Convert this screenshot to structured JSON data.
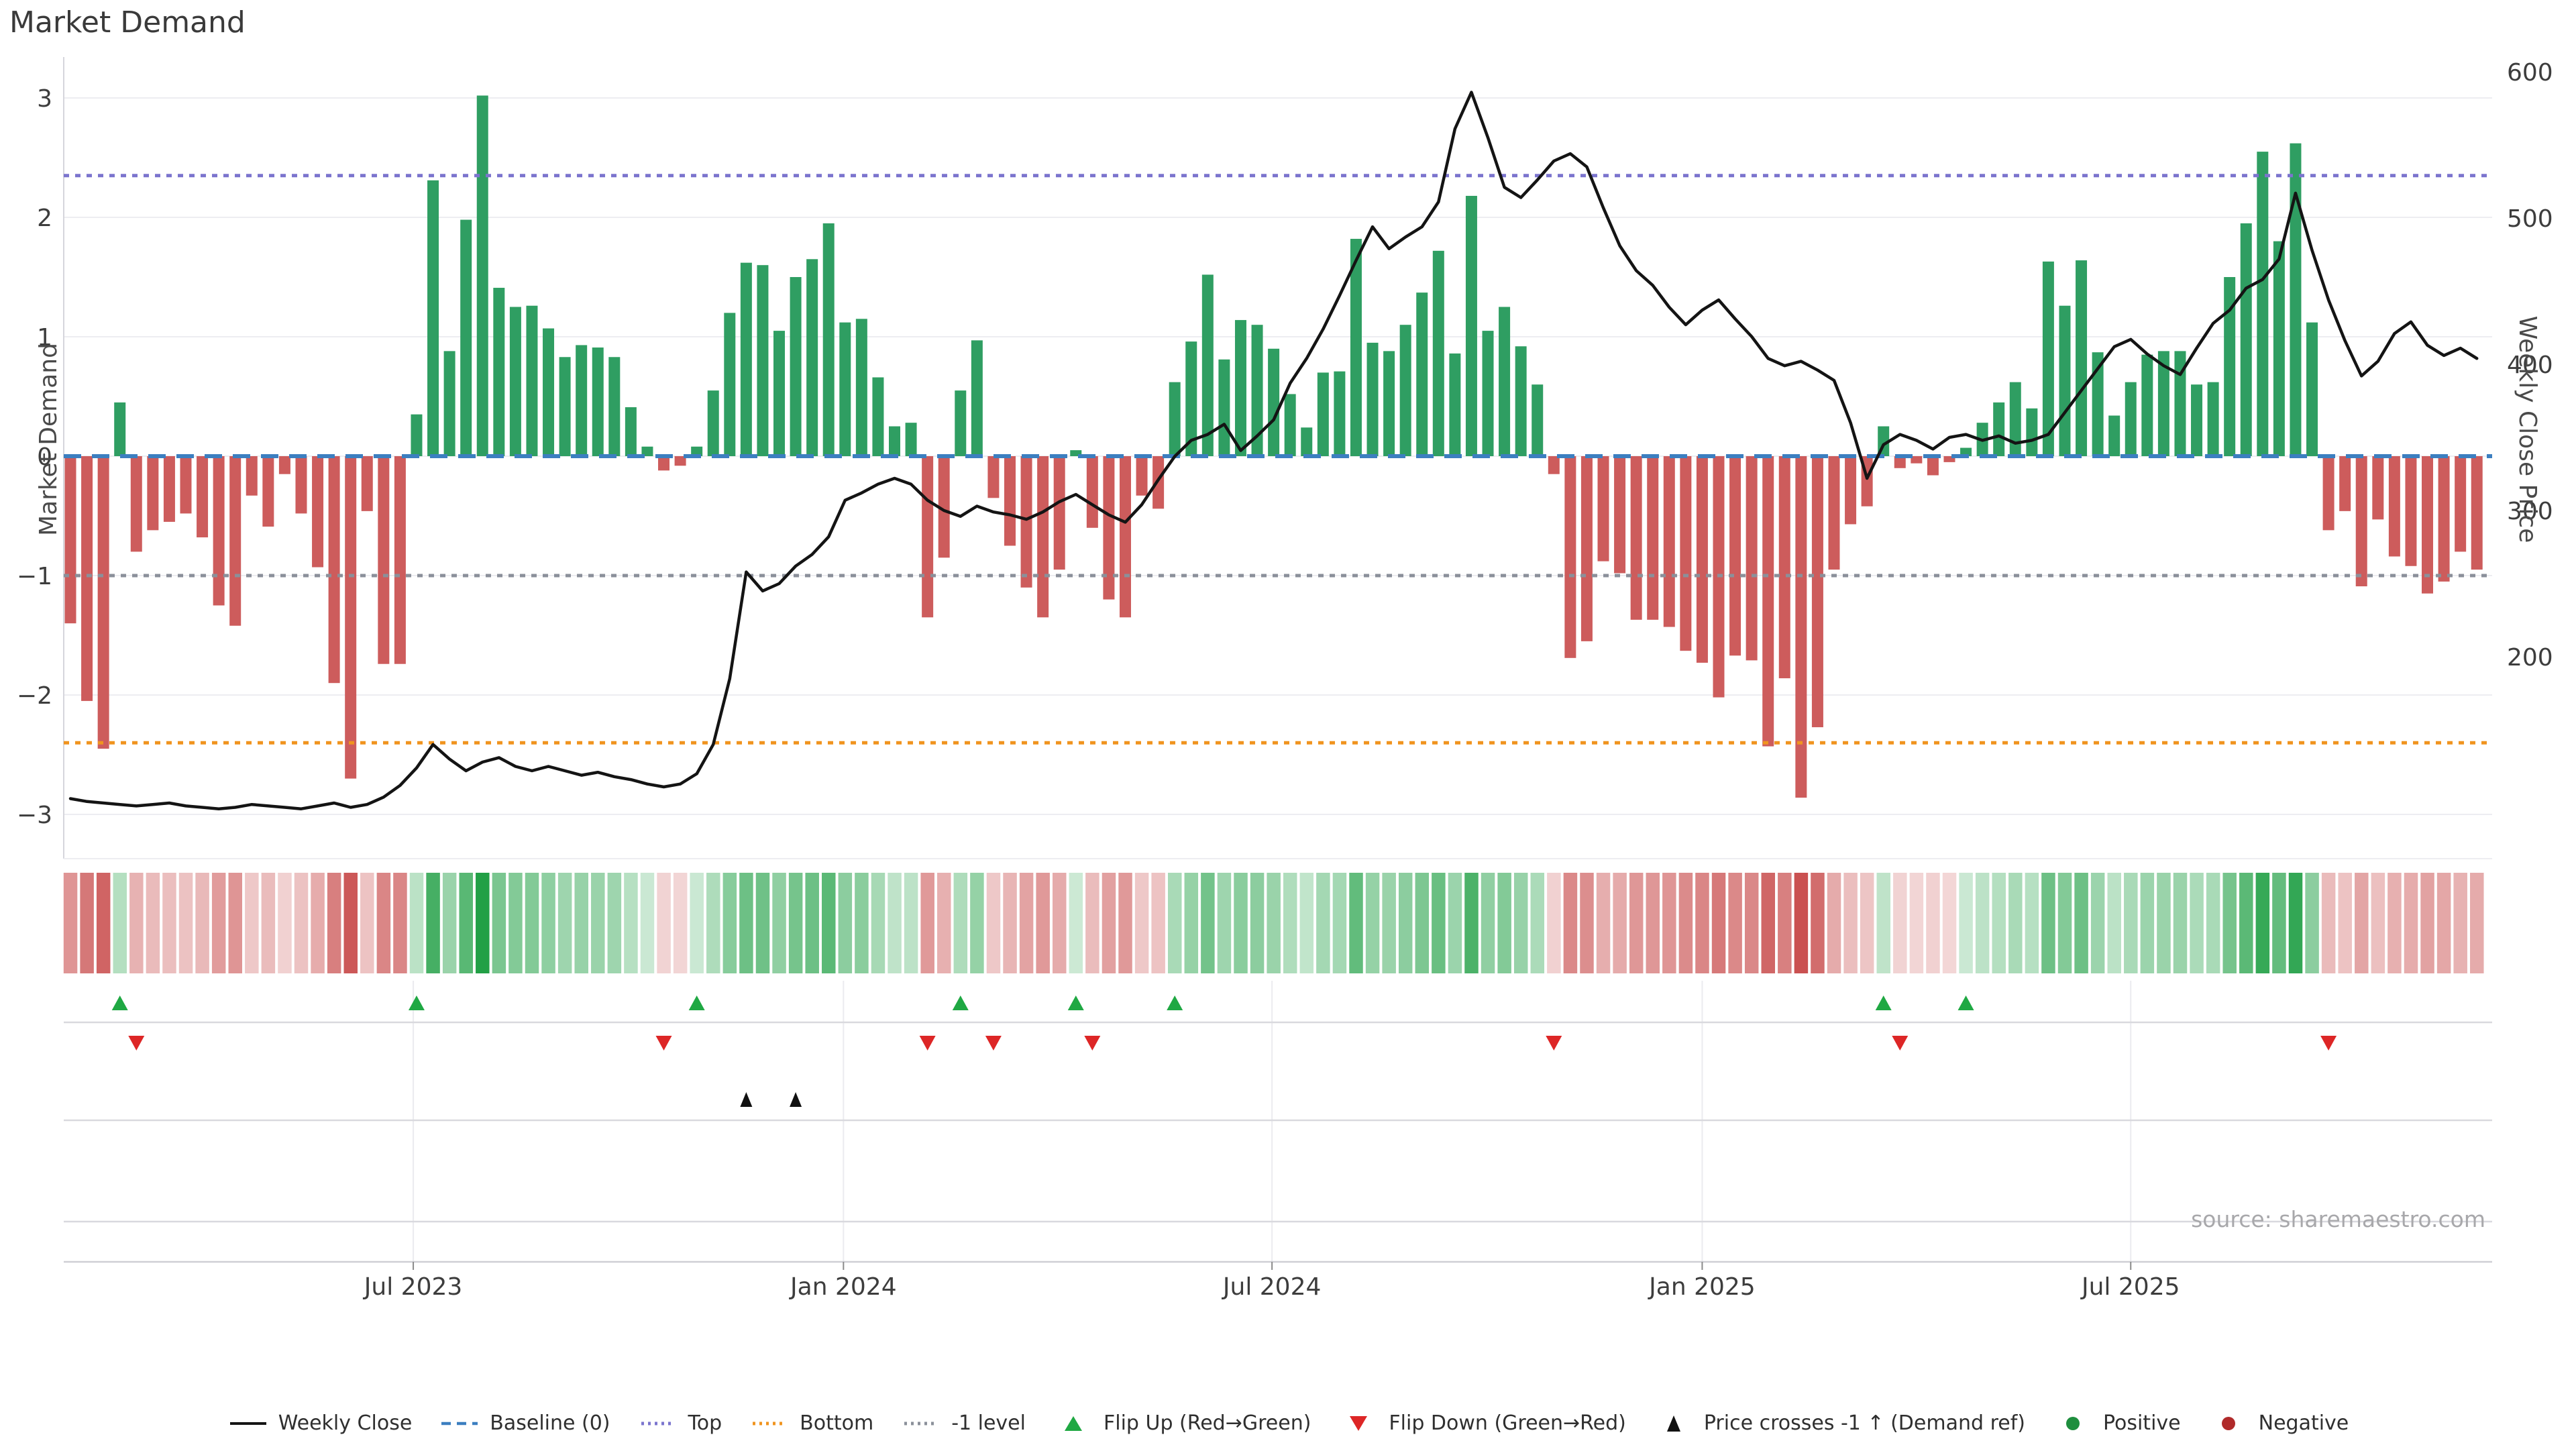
{
  "title": "Market Demand",
  "left_axis": {
    "label": "Market Demand",
    "ticks": [
      "3",
      "2",
      "1",
      "0",
      "−1",
      "−2",
      "−3"
    ],
    "tick_values": [
      3,
      2,
      1,
      0,
      -1,
      -2,
      -3
    ]
  },
  "right_axis": {
    "label": "Weekly Close Price",
    "ticks": [
      "600",
      "500",
      "400",
      "300",
      "200"
    ],
    "tick_values": [
      600,
      500,
      400,
      300,
      200
    ]
  },
  "x_axis": {
    "tick_labels": [
      "Jul 2023",
      "Jan 2024",
      "Jul 2024",
      "Jan 2025",
      "Jul 2025"
    ],
    "tick_weeks": [
      20.8,
      46.9,
      72.9,
      99.0,
      125.0
    ]
  },
  "source": "source: sharemaestro.com",
  "reference_lines": {
    "baseline": {
      "label": "Baseline (0)",
      "value": 0,
      "color": "#3c7fc0"
    },
    "top": {
      "label": "Top",
      "value": 2.35,
      "color": "#7b74ce"
    },
    "bottom": {
      "label": "Bottom",
      "value": -2.4,
      "color": "#f0941f"
    },
    "minus1": {
      "label": "-1 level",
      "value": -1,
      "color": "#8b909a"
    }
  },
  "colors": {
    "bar_positive": "#2f9e62",
    "bar_negative": "#cd5c5c",
    "price_line": "#141414",
    "flip_up": "#1fa843",
    "flip_down": "#dd2626",
    "price_cross": "#111111",
    "positive_dot": "#1e8e3e",
    "negative_dot": "#b02a2a",
    "grid": "#ededf1",
    "spine": "#d6d6dc"
  },
  "legend": [
    {
      "symbol": "line",
      "label": "Weekly Close",
      "color": "#141414"
    },
    {
      "symbol": "dash",
      "label": "Baseline (0)",
      "color": "#3c7fc0"
    },
    {
      "symbol": "dots",
      "label": "Top",
      "color": "#7b74ce"
    },
    {
      "symbol": "dots",
      "label": "Bottom",
      "color": "#f0941f"
    },
    {
      "symbol": "dots",
      "label": "-1 level",
      "color": "#8b909a"
    },
    {
      "symbol": "tri-up",
      "label": "Flip Up (Red→Green)",
      "color": "#1fa843"
    },
    {
      "symbol": "tri-down",
      "label": "Flip Down (Green→Red)",
      "color": "#dd2626"
    },
    {
      "symbol": "tri-up-n",
      "label": "Price crosses -1 ↑ (Demand ref)",
      "color": "#111111"
    },
    {
      "symbol": "circle",
      "label": "Positive",
      "color": "#1e8e3e"
    },
    {
      "symbol": "circle",
      "label": "Negative",
      "color": "#b02a2a"
    }
  ],
  "chart_data": {
    "type": "bar+line",
    "x_unit": "week",
    "weeks": 147,
    "title": "Market Demand",
    "ylabel_left": "Market Demand",
    "ylabel_right": "Weekly Close Price",
    "demand_axis_range": [
      -3.35,
      3.35
    ],
    "price_axis_range": [
      95,
      615
    ],
    "grid": true,
    "legend_position": "bottom",
    "demand": [
      -1.4,
      -2.05,
      -2.45,
      0.45,
      -0.8,
      -0.62,
      -0.55,
      -0.48,
      -0.68,
      -1.25,
      -1.42,
      -0.33,
      -0.59,
      -0.15,
      -0.48,
      -0.93,
      -1.9,
      -2.7,
      -0.46,
      -1.74,
      -1.74,
      0.35,
      2.31,
      0.88,
      1.98,
      3.02,
      1.41,
      1.25,
      1.26,
      1.07,
      0.83,
      0.93,
      0.91,
      0.83,
      0.41,
      0.08,
      -0.12,
      -0.08,
      0.08,
      0.55,
      1.2,
      1.62,
      1.6,
      1.05,
      1.5,
      1.65,
      1.95,
      1.12,
      1.15,
      0.66,
      0.25,
      0.28,
      -1.35,
      -0.85,
      0.55,
      0.97,
      -0.35,
      -0.75,
      -1.1,
      -1.35,
      -0.95,
      0.05,
      -0.6,
      -1.2,
      -1.35,
      -0.33,
      -0.44,
      0.62,
      0.96,
      1.52,
      0.81,
      1.14,
      1.1,
      0.9,
      0.52,
      0.24,
      0.7,
      0.71,
      1.82,
      0.95,
      0.88,
      1.1,
      1.37,
      1.72,
      0.86,
      2.18,
      1.05,
      1.25,
      0.92,
      0.6,
      -0.15,
      -1.69,
      -1.55,
      -0.88,
      -0.98,
      -1.37,
      -1.37,
      -1.43,
      -1.63,
      -1.73,
      -2.02,
      -1.67,
      -1.71,
      -2.43,
      -1.86,
      -2.86,
      -2.27,
      -0.95,
      -0.57,
      -0.42,
      0.25,
      -0.1,
      -0.06,
      -0.16,
      -0.05,
      0.07,
      0.28,
      0.45,
      0.62,
      0.4,
      1.63,
      1.26,
      1.64,
      0.87,
      0.34,
      0.62,
      0.85,
      0.88,
      0.88,
      0.6,
      0.62,
      1.5,
      1.95,
      2.55,
      1.8,
      2.62,
      1.12,
      -0.62,
      -0.46,
      -1.09,
      -0.53,
      -0.84,
      -0.92,
      -1.15,
      -1.05,
      -0.8,
      -0.95
    ],
    "price": [
      103,
      101,
      100,
      99,
      98,
      99,
      100,
      98,
      97,
      96,
      97,
      99,
      98,
      97,
      96,
      98,
      100,
      97,
      99,
      104,
      112,
      124,
      140,
      130,
      122,
      128,
      131,
      125,
      122,
      125,
      122,
      119,
      121,
      118,
      116,
      113,
      111,
      113,
      120,
      140,
      185,
      258,
      245,
      250,
      262,
      270,
      282,
      307,
      312,
      318,
      322,
      318,
      307,
      300,
      296,
      303,
      299,
      297,
      294,
      299,
      306,
      311,
      304,
      297,
      292,
      304,
      321,
      337,
      348,
      352,
      359,
      341,
      351,
      362,
      387,
      404,
      424,
      447,
      471,
      494,
      479,
      487,
      494,
      511,
      561,
      586,
      555,
      521,
      514,
      526,
      539,
      544,
      535,
      507,
      481,
      464,
      454,
      439,
      427,
      437,
      444,
      431,
      419,
      404,
      399,
      402,
      396,
      389,
      360,
      322,
      345,
      352,
      348,
      342,
      350,
      352,
      348,
      351,
      346,
      348,
      352,
      367,
      382,
      397,
      412,
      417,
      407,
      399,
      393,
      411,
      428,
      437,
      452,
      458,
      472,
      517,
      478,
      444,
      416,
      392,
      402,
      421,
      429,
      413,
      406,
      411,
      404
    ],
    "flip_up_weeks": [
      3,
      21,
      38,
      54,
      61,
      67,
      110,
      115
    ],
    "flip_down_weeks": [
      4,
      36,
      52,
      56,
      62,
      90,
      111,
      137
    ],
    "price_cross_weeks": [
      41,
      44
    ]
  }
}
